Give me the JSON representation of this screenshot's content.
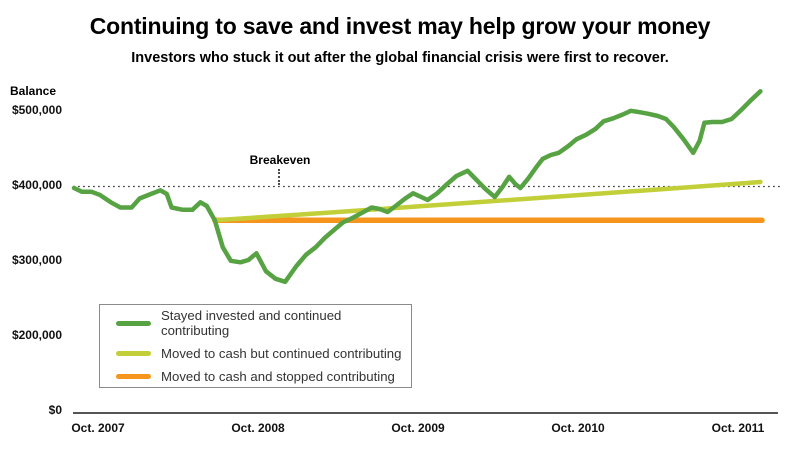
{
  "header": {
    "title": "Continuing to save and invest may help grow your money",
    "subtitle": "Investors who stuck it out after the global financial crisis were first to recover."
  },
  "colors": {
    "green_series": "#57A344",
    "yellowgreen_series": "#C2CF39",
    "orange_series": "#F6951E",
    "dotted_reference": "#444444",
    "axis_line": "#555555",
    "tick_text": "#111111",
    "legend_text": "#333333",
    "legend_border": "#8A8A8A"
  },
  "chart_data": {
    "type": "line",
    "title": "Continuing to save and invest may help grow your money",
    "subtitle": "Investors who stuck it out after the global financial crisis were first to recover.",
    "ylabel": "Balance",
    "xlabel": "",
    "x_unit": "years since Oct. 2007",
    "xlim": [
      -0.16,
      4.25
    ],
    "ylim_top": 535000,
    "grid": false,
    "legend_position": "bottom-left",
    "y_scale_note": "broken axis: $0 to $200,000 compressed to one tick step; $100,000 per step above $200,000",
    "x_ticks": [
      {
        "t": 0,
        "label": "Oct. 2007"
      },
      {
        "t": 1,
        "label": "Oct. 2008"
      },
      {
        "t": 2,
        "label": "Oct. 2009"
      },
      {
        "t": 3,
        "label": "Oct. 2010"
      },
      {
        "t": 4,
        "label": "Oct. 2011"
      }
    ],
    "y_ticks": [
      {
        "value": 500000,
        "label": "$500,000"
      },
      {
        "value": 400000,
        "label": "$400,000"
      },
      {
        "value": 300000,
        "label": "$300,000"
      },
      {
        "value": 200000,
        "label": "$200,000"
      },
      {
        "value": 0,
        "label": "$0"
      }
    ],
    "annotations": {
      "breakeven": {
        "label": "Breakeven",
        "value": 398000,
        "label_t": 1.14
      }
    },
    "series": [
      {
        "key": "stayed-invested",
        "name": "Stayed invested and continued contributing",
        "color": "#57A344",
        "stroke_width": 4.5,
        "points": [
          [
            -0.15,
            396000
          ],
          [
            -0.1,
            391000
          ],
          [
            -0.04,
            391000
          ],
          [
            0.01,
            387000
          ],
          [
            0.08,
            377000
          ],
          [
            0.14,
            370000
          ],
          [
            0.21,
            370000
          ],
          [
            0.26,
            382000
          ],
          [
            0.33,
            388000
          ],
          [
            0.39,
            393000
          ],
          [
            0.43,
            388000
          ],
          [
            0.46,
            370000
          ],
          [
            0.53,
            367000
          ],
          [
            0.59,
            367000
          ],
          [
            0.64,
            377000
          ],
          [
            0.68,
            372000
          ],
          [
            0.73,
            353000
          ],
          [
            0.78,
            317000
          ],
          [
            0.83,
            299000
          ],
          [
            0.89,
            297000
          ],
          [
            0.94,
            300000
          ],
          [
            0.99,
            309000
          ],
          [
            1.05,
            285000
          ],
          [
            1.11,
            275000
          ],
          [
            1.17,
            271000
          ],
          [
            1.24,
            292000
          ],
          [
            1.3,
            307000
          ],
          [
            1.36,
            317000
          ],
          [
            1.42,
            330000
          ],
          [
            1.48,
            341000
          ],
          [
            1.53,
            350000
          ],
          [
            1.59,
            356000
          ],
          [
            1.65,
            363000
          ],
          [
            1.71,
            370000
          ],
          [
            1.76,
            368000
          ],
          [
            1.81,
            364000
          ],
          [
            1.86,
            372000
          ],
          [
            1.92,
            382000
          ],
          [
            1.97,
            389000
          ],
          [
            2.02,
            384000
          ],
          [
            2.06,
            380000
          ],
          [
            2.12,
            389000
          ],
          [
            2.18,
            401000
          ],
          [
            2.24,
            412000
          ],
          [
            2.31,
            419000
          ],
          [
            2.36,
            408000
          ],
          [
            2.42,
            395000
          ],
          [
            2.48,
            384000
          ],
          [
            2.53,
            398000
          ],
          [
            2.57,
            411000
          ],
          [
            2.61,
            401000
          ],
          [
            2.64,
            396000
          ],
          [
            2.69,
            409000
          ],
          [
            2.74,
            424000
          ],
          [
            2.78,
            435000
          ],
          [
            2.83,
            440000
          ],
          [
            2.88,
            443000
          ],
          [
            2.94,
            452000
          ],
          [
            2.99,
            461000
          ],
          [
            3.05,
            467000
          ],
          [
            3.11,
            475000
          ],
          [
            3.16,
            485000
          ],
          [
            3.22,
            489000
          ],
          [
            3.28,
            494000
          ],
          [
            3.33,
            499000
          ],
          [
            3.39,
            497000
          ],
          [
            3.44,
            495000
          ],
          [
            3.5,
            492000
          ],
          [
            3.55,
            488000
          ],
          [
            3.6,
            477000
          ],
          [
            3.66,
            461000
          ],
          [
            3.72,
            443000
          ],
          [
            3.76,
            459000
          ],
          [
            3.79,
            483000
          ],
          [
            3.84,
            484000
          ],
          [
            3.9,
            484000
          ],
          [
            3.96,
            488000
          ],
          [
            4.02,
            500000
          ],
          [
            4.08,
            513000
          ],
          [
            4.14,
            525000
          ]
        ]
      },
      {
        "key": "cash-contributing",
        "name": "Moved to cash but continued contributing",
        "color": "#C2CF39",
        "stroke_width": 4.5,
        "points": [
          [
            0.73,
            353000
          ],
          [
            1.5,
            364000
          ],
          [
            2.5,
            379000
          ],
          [
            3.5,
            394000
          ],
          [
            4.14,
            404000
          ]
        ]
      },
      {
        "key": "cash-stopped",
        "name": "Moved to cash and stopped contributing",
        "color": "#F6951E",
        "stroke_width": 5.5,
        "points": [
          [
            0.73,
            353000
          ],
          [
            4.15,
            353000
          ]
        ]
      }
    ]
  }
}
